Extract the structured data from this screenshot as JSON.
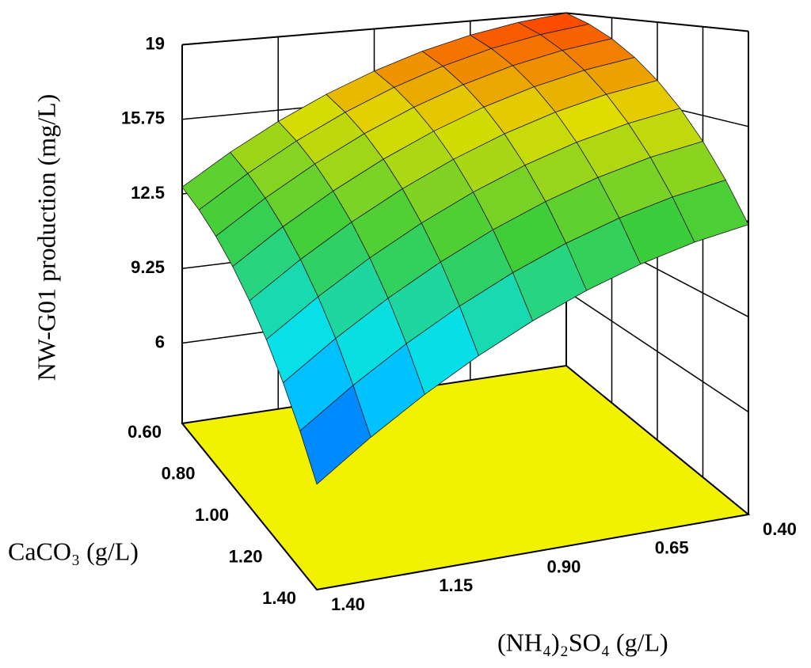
{
  "chart_data": {
    "type": "surface3d",
    "z_label": "NW-G01 production (mg/L)",
    "x_label": "CaCO₃ (g/L)",
    "y_label": "(NH₄)₂SO₄ (g/L)",
    "x": [
      0.6,
      0.7,
      0.8,
      0.9,
      1.0,
      1.1,
      1.2,
      1.3,
      1.4
    ],
    "y": [
      1.4,
      1.275,
      1.15,
      1.025,
      0.9,
      0.775,
      0.65,
      0.525,
      0.4
    ],
    "values": [
      [
        12.8,
        14.1,
        15.25,
        16.25,
        17.1,
        17.8,
        18.35,
        18.75,
        19.0
      ],
      [
        12.41,
        13.71,
        14.86,
        15.86,
        16.71,
        17.41,
        17.96,
        18.36,
        18.61
      ],
      [
        11.9,
        13.2,
        14.35,
        15.35,
        16.2,
        16.9,
        17.45,
        17.85,
        18.1
      ],
      [
        11.26,
        12.56,
        13.71,
        14.71,
        15.56,
        16.26,
        16.81,
        17.21,
        17.46
      ],
      [
        10.5,
        11.8,
        12.95,
        13.95,
        14.8,
        15.5,
        16.05,
        16.45,
        16.7
      ],
      [
        9.61,
        10.91,
        12.06,
        13.06,
        13.91,
        14.61,
        15.16,
        15.56,
        15.81
      ],
      [
        8.6,
        9.9,
        11.05,
        12.05,
        12.9,
        13.6,
        14.15,
        14.55,
        14.8
      ],
      [
        7.46,
        8.76,
        9.91,
        10.91,
        11.76,
        12.46,
        13.01,
        13.41,
        13.66
      ],
      [
        6.2,
        7.5,
        8.65,
        9.65,
        10.5,
        11.2,
        11.75,
        12.15,
        12.4
      ]
    ],
    "xlim": [
      0.6,
      1.4
    ],
    "xticks": [
      {
        "value": 0.6,
        "label": "0.60"
      },
      {
        "value": 0.8,
        "label": "0.80"
      },
      {
        "value": 1.0,
        "label": "1.00"
      },
      {
        "value": 1.2,
        "label": "1.20"
      },
      {
        "value": 1.4,
        "label": "1.40"
      }
    ],
    "ylim": [
      1.4,
      0.4
    ],
    "yticks": [
      {
        "value": 1.4,
        "label": "1.40"
      },
      1.15,
      {
        "value": 0.9,
        "label": "0.90"
      },
      0.65,
      {
        "value": 0.4,
        "label": "0.40"
      }
    ],
    "zlim": [
      2.5,
      19
    ],
    "zticks": [
      6,
      9.25,
      12.5,
      15.75,
      19
    ],
    "floor_color": "#f2f200",
    "grid": true
  }
}
